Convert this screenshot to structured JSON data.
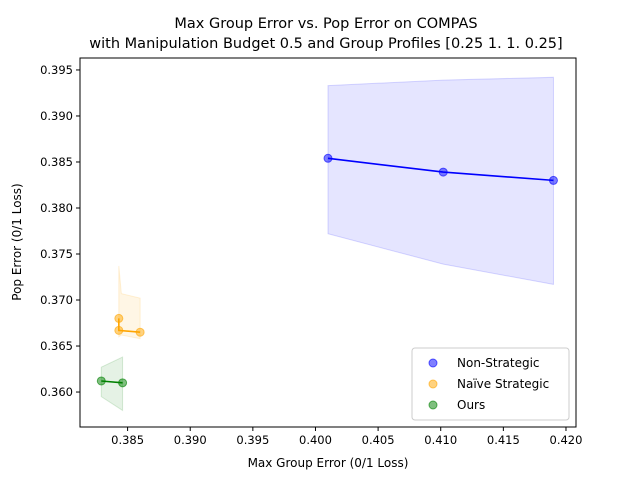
{
  "chart_data": {
    "type": "line",
    "title_line1": "Max Group Error vs. Pop Error on COMPAS",
    "title_line2": "with Manipulation Budget 0.5 and Group Profiles [0.25 1.   1.   0.25]",
    "xlabel": "Max Group Error (0/1 Loss)",
    "ylabel": "Pop Error (0/1 Loss)",
    "xlim": [
      0.3812,
      0.4208
    ],
    "ylim": [
      0.3562,
      0.3963
    ],
    "xticks": [
      0.385,
      0.39,
      0.395,
      0.4,
      0.405,
      0.41,
      0.415,
      0.42
    ],
    "xtick_labels": [
      "0.385",
      "0.390",
      "0.395",
      "0.400",
      "0.405",
      "0.410",
      "0.415",
      "0.420"
    ],
    "yticks": [
      0.36,
      0.365,
      0.37,
      0.375,
      0.38,
      0.385,
      0.39,
      0.395
    ],
    "ytick_labels": [
      "0.360",
      "0.365",
      "0.370",
      "0.375",
      "0.380",
      "0.385",
      "0.390",
      "0.395"
    ],
    "grid": false,
    "legend_position": "lower-right",
    "series": [
      {
        "name": "Non-Strategic",
        "color": "#0000ff",
        "points": [
          [
            0.401,
            0.3854
          ],
          [
            0.4102,
            0.3839
          ],
          [
            0.419,
            0.383
          ]
        ],
        "band": [
          [
            0.401,
            0.3772,
            0.3933
          ],
          [
            0.4102,
            0.3739,
            0.3939
          ],
          [
            0.419,
            0.3717,
            0.3942
          ]
        ]
      },
      {
        "name": "Naïve Strategic",
        "color": "#ffa500",
        "points": [
          [
            0.3843,
            0.368
          ],
          [
            0.3843,
            0.3667
          ],
          [
            0.386,
            0.3665
          ]
        ],
        "band": [
          [
            0.3843,
            0.366,
            0.3737
          ],
          [
            0.3845,
            0.3662,
            0.3707
          ],
          [
            0.386,
            0.3658,
            0.3702
          ]
        ]
      },
      {
        "name": "Ours",
        "color": "#008000",
        "points": [
          [
            0.3829,
            0.3612
          ],
          [
            0.3846,
            0.361
          ]
        ],
        "band": [
          [
            0.3829,
            0.3595,
            0.3627
          ],
          [
            0.3846,
            0.358,
            0.3638
          ]
        ]
      }
    ]
  }
}
